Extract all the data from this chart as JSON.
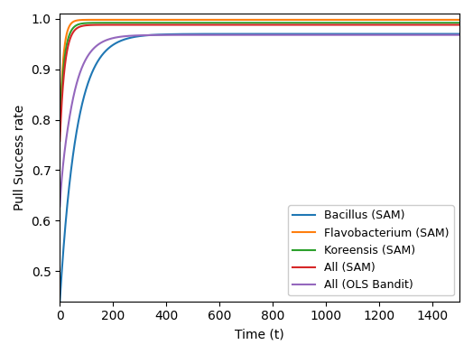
{
  "title": "",
  "xlabel": "Time (t)",
  "ylabel": "Pull Success rate",
  "xlim": [
    0,
    1500
  ],
  "ylim": [
    0.44,
    1.01
  ],
  "yticks": [
    0.5,
    0.6,
    0.7,
    0.8,
    0.9,
    1.0
  ],
  "xticks": [
    0,
    200,
    400,
    600,
    800,
    1000,
    1200,
    1400
  ],
  "series": [
    {
      "label": "Bacillus (SAM)",
      "color": "#1f77b4",
      "asym": 0.97,
      "span": 0.53,
      "rate": 0.016,
      "bump_amp": 0.0,
      "bump_rate": 0.0,
      "bump_freq": 0.0
    },
    {
      "label": "Flavobacterium (SAM)",
      "color": "#ff7f0e",
      "asym": 0.998,
      "span": 0.22,
      "rate": 0.08,
      "bump_amp": 0.0,
      "bump_rate": 0.0,
      "bump_freq": 0.0
    },
    {
      "label": "Koreensis (SAM)",
      "color": "#2ca02c",
      "asym": 0.992,
      "span": 0.205,
      "rate": 0.06,
      "bump_amp": 0.0,
      "bump_rate": 0.0,
      "bump_freq": 0.0
    },
    {
      "label": "All (SAM)",
      "color": "#d62728",
      "asym": 0.988,
      "span": 0.23,
      "rate": 0.055,
      "bump_amp": 0.0,
      "bump_rate": 0.0,
      "bump_freq": 0.0
    },
    {
      "label": "All (OLS Bandit)",
      "color": "#9467bd",
      "asym": 0.968,
      "span": 0.34,
      "rate": 0.02,
      "bump_amp": 0.048,
      "bump_rate": 0.1,
      "bump_freq": 0.055
    }
  ],
  "legend_loc": "lower right",
  "legend_fontsize": 9,
  "figsize": [
    5.24,
    3.92
  ],
  "dpi": 100
}
